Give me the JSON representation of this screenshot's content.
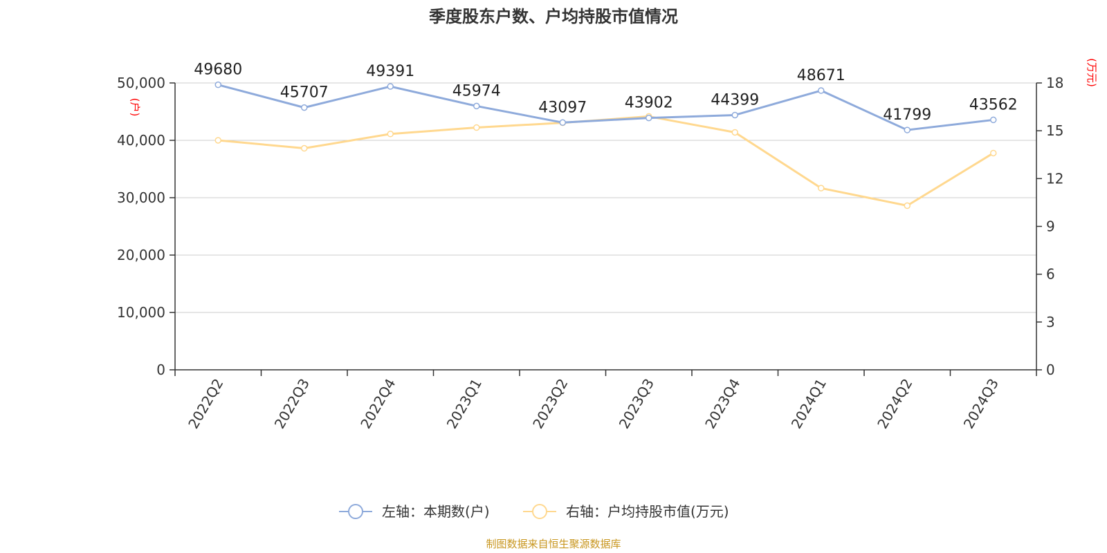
{
  "chart_data": {
    "type": "line",
    "title": "季度股东户数、户均持股市值情况",
    "categories": [
      "2022Q2",
      "2022Q3",
      "2022Q4",
      "2023Q1",
      "2023Q2",
      "2023Q3",
      "2023Q4",
      "2024Q1",
      "2024Q2",
      "2024Q3"
    ],
    "series": [
      {
        "name": "左轴：本期数(户)",
        "axis": "left",
        "color": "#8eaadb",
        "values": [
          49680,
          45707,
          49391,
          45974,
          43097,
          43902,
          44399,
          48671,
          41799,
          43562
        ],
        "data_labels": [
          "49680",
          "45707",
          "49391",
          "45974",
          "43097",
          "43902",
          "44399",
          "48671",
          "41799",
          "43562"
        ]
      },
      {
        "name": "右轴：户均持股市值(万元)",
        "axis": "right",
        "color": "#ffd88f",
        "values": [
          14.4,
          13.9,
          14.8,
          15.2,
          15.5,
          15.9,
          14.9,
          11.4,
          10.3,
          13.6
        ]
      }
    ],
    "y_left": {
      "unit": "(户)",
      "ylim": [
        0,
        50000
      ],
      "ticks": [
        0,
        10000,
        20000,
        30000,
        40000,
        50000
      ],
      "tick_labels": [
        "0",
        "10,000",
        "20,000",
        "30,000",
        "40,000",
        "50,000"
      ]
    },
    "y_right": {
      "unit": "(万元)",
      "ylim": [
        0,
        18
      ],
      "ticks": [
        0,
        3,
        6,
        9,
        12,
        15,
        18
      ],
      "tick_labels": [
        "0",
        "3",
        "6",
        "9",
        "12",
        "15",
        "18"
      ]
    },
    "grid": true,
    "legend_position": "bottom-center"
  },
  "source": "制图数据来自恒生聚源数据库",
  "colors": {
    "axis": "#333333",
    "grid": "#cccccc",
    "unit": "#ff0000",
    "source": "#c8961e"
  }
}
